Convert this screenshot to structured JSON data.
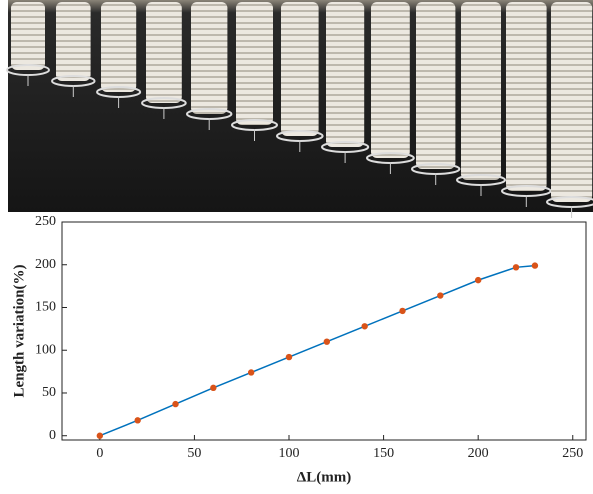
{
  "chart_data": {
    "type": "line",
    "x_label": "ΔL(mm)",
    "y_label": "Length variation(%)",
    "x": [
      0,
      20,
      40,
      60,
      80,
      100,
      120,
      140,
      160,
      180,
      200,
      220,
      230
    ],
    "series": [
      {
        "line_color": "#0072bd",
        "marker_color": "#d95319",
        "values": [
          0,
          18,
          37,
          56,
          74,
          92,
          110,
          128,
          146,
          164,
          182,
          197,
          199
        ]
      }
    ],
    "xlim": [
      -20,
      257
    ],
    "ylim": [
      -5,
      250
    ],
    "xticks": [
      0,
      50,
      100,
      150,
      200,
      250
    ],
    "yticks": [
      0,
      50,
      100,
      150,
      200,
      250
    ]
  }
}
